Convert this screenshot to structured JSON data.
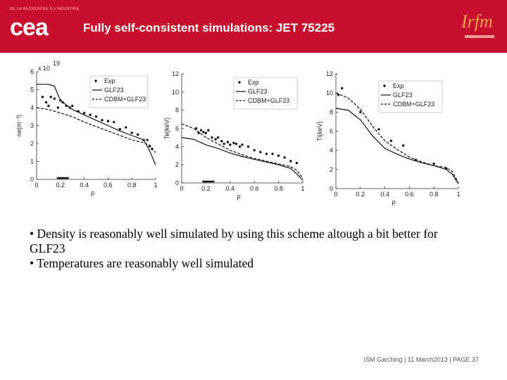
{
  "header": {
    "title": "Fully self-consistent simulations: JET 75225",
    "tagline": "DE LA RECHERCHE À L'INDUSTRIE",
    "cea_logo": "cea",
    "irfm_logo": "Irfm"
  },
  "bullets": [
    "• Density is reasonably well simulated by using this scheme altough a bit better for GLF23",
    "• Temperatures are reasonably well simulated"
  ],
  "footer": {
    "event": "ISM Garching | 11 March2013 |",
    "page": "PAGE 37"
  },
  "chart_data": [
    {
      "type": "line",
      "ylabel": "ne(m⁻³)",
      "xlabel": "ρ",
      "y_multiplier": "x 10",
      "y_exponent": "19",
      "xlim": [
        0,
        1
      ],
      "ylim": [
        0,
        6
      ],
      "xticks": [
        0,
        0.2,
        0.4,
        0.6,
        0.8,
        1
      ],
      "yticks": [
        0,
        1,
        2,
        3,
        4,
        5,
        6
      ],
      "legend": [
        "Exp",
        "GLF23",
        "CDBM+GLF23"
      ],
      "legend_position": "top-right",
      "series": [
        {
          "name": "Exp",
          "style": "dots",
          "x": [
            0.05,
            0.08,
            0.1,
            0.12,
            0.15,
            0.18,
            0.2,
            0.22,
            0.25,
            0.28,
            0.3,
            0.35,
            0.4,
            0.45,
            0.5,
            0.55,
            0.6,
            0.65,
            0.7,
            0.75,
            0.8,
            0.85,
            0.9,
            0.93,
            0.95,
            0.97
          ],
          "y": [
            4.6,
            4.3,
            4.1,
            4.6,
            4.5,
            4.0,
            4.4,
            4.3,
            4.1,
            4.0,
            4.1,
            3.8,
            3.7,
            3.6,
            3.5,
            3.3,
            3.25,
            3.2,
            2.8,
            2.9,
            2.6,
            2.5,
            2.2,
            2.2,
            1.85,
            1.7
          ]
        },
        {
          "name": "GLF23",
          "style": "solid",
          "x": [
            0,
            0.1,
            0.15,
            0.2,
            0.3,
            0.4,
            0.5,
            0.6,
            0.7,
            0.8,
            0.9,
            0.95,
            1.0
          ],
          "y": [
            5.3,
            5.3,
            5.2,
            4.4,
            3.9,
            3.6,
            3.3,
            3.0,
            2.7,
            2.45,
            2.2,
            1.6,
            0.8
          ]
        },
        {
          "name": "CDBM+GLF23",
          "style": "dashed",
          "x": [
            0,
            0.1,
            0.2,
            0.3,
            0.4,
            0.5,
            0.6,
            0.7,
            0.8,
            0.9,
            0.95,
            1.0
          ],
          "y": [
            4.0,
            3.9,
            3.7,
            3.5,
            3.2,
            2.95,
            2.7,
            2.45,
            2.2,
            2.05,
            1.9,
            1.5
          ]
        }
      ]
    },
    {
      "type": "line",
      "ylabel": "Te(keV)",
      "xlabel": "ρ",
      "xlim": [
        0,
        1
      ],
      "ylim": [
        0,
        12
      ],
      "xticks": [
        0,
        0.2,
        0.4,
        0.6,
        0.8,
        1
      ],
      "yticks": [
        0,
        2,
        4,
        6,
        8,
        10,
        12
      ],
      "legend": [
        "Exp",
        "GLF23",
        "CDBM+GLF23"
      ],
      "legend_position": "top-right",
      "series": [
        {
          "name": "Exp",
          "style": "dots",
          "x": [
            0.12,
            0.14,
            0.16,
            0.18,
            0.2,
            0.22,
            0.25,
            0.28,
            0.3,
            0.33,
            0.35,
            0.38,
            0.4,
            0.43,
            0.45,
            0.48,
            0.5,
            0.55,
            0.6,
            0.65,
            0.7,
            0.75,
            0.8,
            0.85,
            0.9,
            0.95
          ],
          "y": [
            6.0,
            5.5,
            5.8,
            5.6,
            5.5,
            5.8,
            5.0,
            4.8,
            5.0,
            4.6,
            4.3,
            4.5,
            4.2,
            4.4,
            4.3,
            4.0,
            4.2,
            4.0,
            3.6,
            3.4,
            3.2,
            3.2,
            3.0,
            2.8,
            2.4,
            2.2
          ]
        },
        {
          "name": "GLF23",
          "style": "solid",
          "x": [
            0,
            0.1,
            0.2,
            0.3,
            0.4,
            0.5,
            0.6,
            0.7,
            0.8,
            0.9,
            0.95,
            1.0
          ],
          "y": [
            5.0,
            4.8,
            4.2,
            3.8,
            3.3,
            2.9,
            2.6,
            2.3,
            2.0,
            1.6,
            1.0,
            0.3
          ]
        },
        {
          "name": "CDBM+GLF23",
          "style": "dashed",
          "x": [
            0,
            0.1,
            0.2,
            0.3,
            0.4,
            0.5,
            0.6,
            0.7,
            0.8,
            0.9,
            0.95,
            1.0
          ],
          "y": [
            6.5,
            6.0,
            5.0,
            4.3,
            3.6,
            3.1,
            2.7,
            2.4,
            2.1,
            1.8,
            1.4,
            0.5
          ]
        }
      ]
    },
    {
      "type": "line",
      "ylabel": "Ti(keV)",
      "xlabel": "ρ",
      "xlim": [
        0,
        1
      ],
      "ylim": [
        0,
        12
      ],
      "xticks": [
        0,
        0.2,
        0.4,
        0.6,
        0.8,
        1
      ],
      "yticks": [
        0,
        2,
        4,
        6,
        8,
        10,
        12
      ],
      "legend": [
        "Exp",
        "GLF23",
        "CDBM+GLF23"
      ],
      "legend_position": "top-right",
      "series": [
        {
          "name": "Exp",
          "style": "dots",
          "x": [
            0.02,
            0.05,
            0.2,
            0.35,
            0.45,
            0.55,
            0.65,
            0.8,
            0.9
          ],
          "y": [
            9.8,
            10.5,
            8.0,
            6.2,
            5.0,
            4.5,
            3.0,
            2.6,
            2.1
          ]
        },
        {
          "name": "GLF23",
          "style": "solid",
          "x": [
            0,
            0.1,
            0.2,
            0.3,
            0.4,
            0.5,
            0.6,
            0.7,
            0.8,
            0.9,
            0.95,
            1.0
          ],
          "y": [
            8.4,
            8.2,
            7.2,
            5.5,
            4.2,
            3.6,
            3.1,
            2.7,
            2.4,
            2.0,
            1.5,
            0.5
          ]
        },
        {
          "name": "CDBM+GLF23",
          "style": "dashed",
          "x": [
            0,
            0.1,
            0.2,
            0.3,
            0.4,
            0.5,
            0.6,
            0.7,
            0.8,
            0.9,
            0.95,
            1.0
          ],
          "y": [
            10.0,
            9.5,
            8.3,
            6.5,
            5.0,
            4.1,
            3.3,
            2.8,
            2.4,
            2.2,
            1.8,
            0.6
          ]
        }
      ]
    }
  ]
}
